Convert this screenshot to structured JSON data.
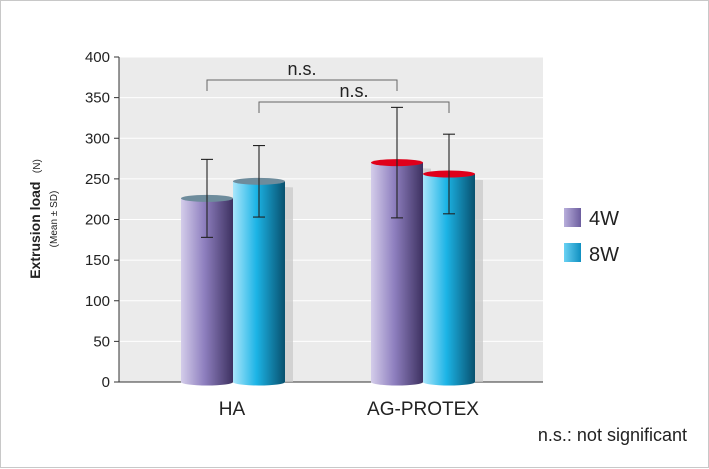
{
  "chart_data": {
    "type": "bar",
    "categories": [
      "HA",
      "AG-PROTEX"
    ],
    "series": [
      {
        "name": "4W",
        "values": [
          226,
          270
        ],
        "errors": [
          48,
          68
        ]
      },
      {
        "name": "8W",
        "values": [
          247,
          256
        ],
        "errors": [
          44,
          49
        ]
      }
    ],
    "ylabel": "Extrusion load",
    "ylabel_unit": "(N)",
    "ylabel_note": "(Mean ± SD)",
    "ylim": [
      0,
      400
    ],
    "yticks": [
      0,
      50,
      100,
      150,
      200,
      250,
      300,
      350,
      400
    ],
    "grid": true,
    "legend_position": "right",
    "significance": [
      {
        "label": "n.s.",
        "from": "HA 4W",
        "to": "AG-PROTEX 4W"
      },
      {
        "label": "n.s.",
        "from": "HA 8W",
        "to": "AG-PROTEX 8W"
      }
    ],
    "footnote": "n.s.: not significant"
  },
  "colors": {
    "series_4W": "#8e7fbf",
    "series_8W": "#1cb4e6",
    "cap_HA": "#6e8c9c",
    "cap_AG-PROTEX": "#e0001b",
    "plot_background": "#ebebeb",
    "gridline": "#ffffff"
  }
}
